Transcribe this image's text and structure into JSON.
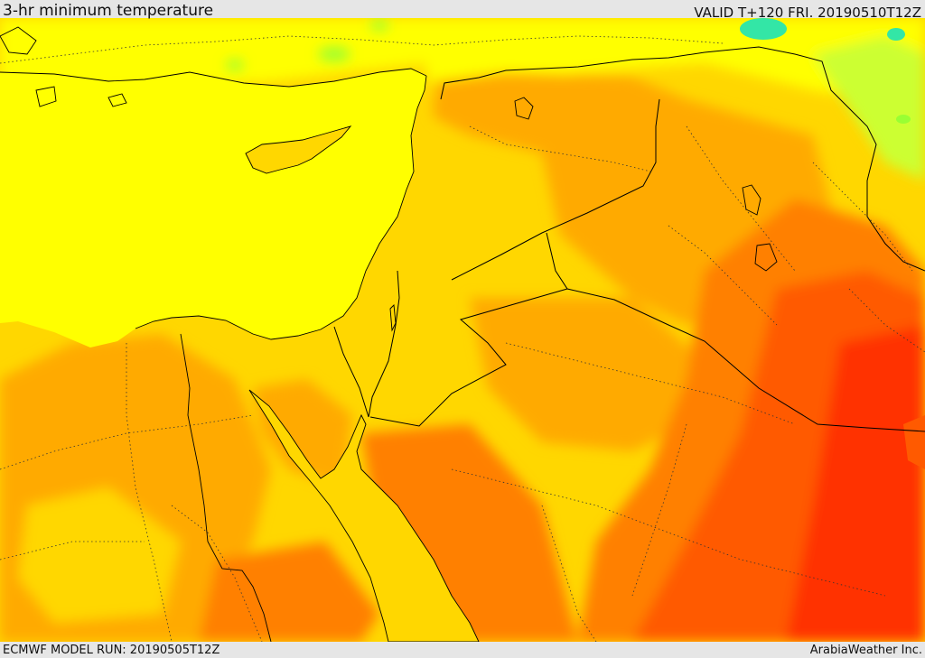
{
  "header": {
    "title": "3-hr minimum temperature",
    "valid": "VALID T+120 FRI. 20190510T12Z"
  },
  "footer": {
    "model_run": "ECMWF MODEL RUN: 20190505T12Z",
    "credit": "ArabiaWeather Inc."
  },
  "palette": {
    "yellow": "#ffff00",
    "light_orange": "#ffd700",
    "orange": "#ffaa00",
    "dark_orange": "#ff8000",
    "red_orange": "#ff5a00",
    "red": "#ff3000",
    "green": "#99ff33",
    "cyan": "#00e0a0"
  }
}
